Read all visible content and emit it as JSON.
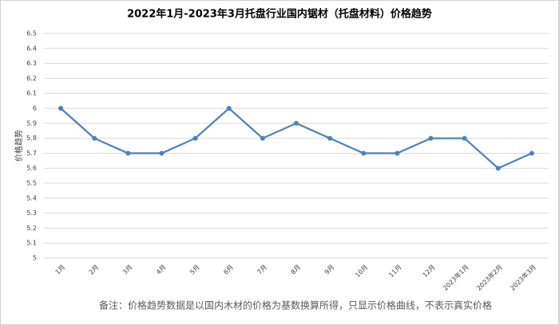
{
  "chart_data": {
    "type": "line",
    "title": "2022年1月-2023年3月托盘行业国内锯材（托盘材料）价格趋势",
    "y_label": "价格趋势",
    "note": "备注：价格趋势数据是以国内木材的价格为基数换算所得，只显示价格曲线，不表示真实价格",
    "categories": [
      "1月",
      "2月",
      "3月",
      "4月",
      "5月",
      "6月",
      "7月",
      "8月",
      "9月",
      "10月",
      "11月",
      "12月",
      "2023年1月",
      "2023年2月",
      "2023年3月"
    ],
    "values": [
      6,
      5.8,
      5.7,
      5.7,
      5.8,
      6,
      5.8,
      5.9,
      5.8,
      5.7,
      5.7,
      5.8,
      5.8,
      5.6,
      5.7
    ],
    "color": "#4f7fbd",
    "ylim": [
      5,
      6.5
    ],
    "yticks": [
      5,
      5.1,
      5.2,
      5.3,
      5.4,
      5.5,
      5.6,
      5.7,
      5.8,
      5.9,
      6,
      6.1,
      6.2,
      6.3,
      6.4,
      6.5
    ],
    "grid": true
  }
}
